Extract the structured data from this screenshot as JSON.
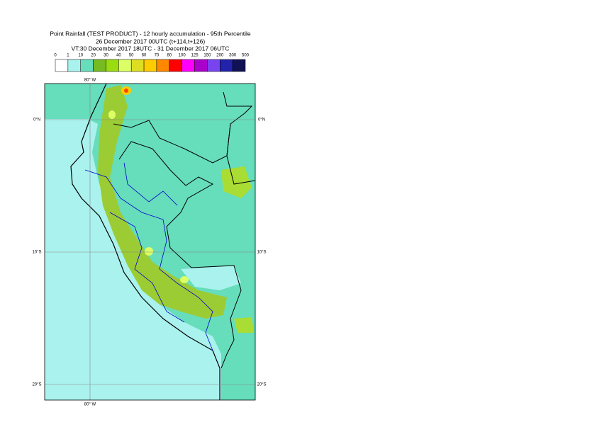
{
  "title": {
    "line1": "Point Rainfall (TEST PRODUCT) - 12 hourly accumulation - 95th Percentile",
    "line2": "26 December 2017 00UTC (t+114,t+126)",
    "line3": "VT:30 December 2017 18UTC - 31 December 2017 06UTC"
  },
  "legend": {
    "thresholds": [
      0,
      1,
      10,
      20,
      30,
      40,
      50,
      60,
      70,
      80,
      100,
      125,
      150,
      200,
      300,
      500
    ],
    "colors": [
      "#ffffff",
      "#aaf2ee",
      "#66ddbb",
      "#77bb22",
      "#99dd11",
      "#ddff66",
      "#dddd22",
      "#ffcc00",
      "#ff8800",
      "#ff0000",
      "#ff00ff",
      "#aa00cc",
      "#7744ee",
      "#2222aa",
      "#111155"
    ]
  },
  "map": {
    "top_label": "80° W",
    "bottom_label": "80° W",
    "left_labels": [
      "0°N",
      "10°S",
      "20°S"
    ],
    "right_labels": [
      "0°N",
      "10°S",
      "20°S"
    ]
  }
}
